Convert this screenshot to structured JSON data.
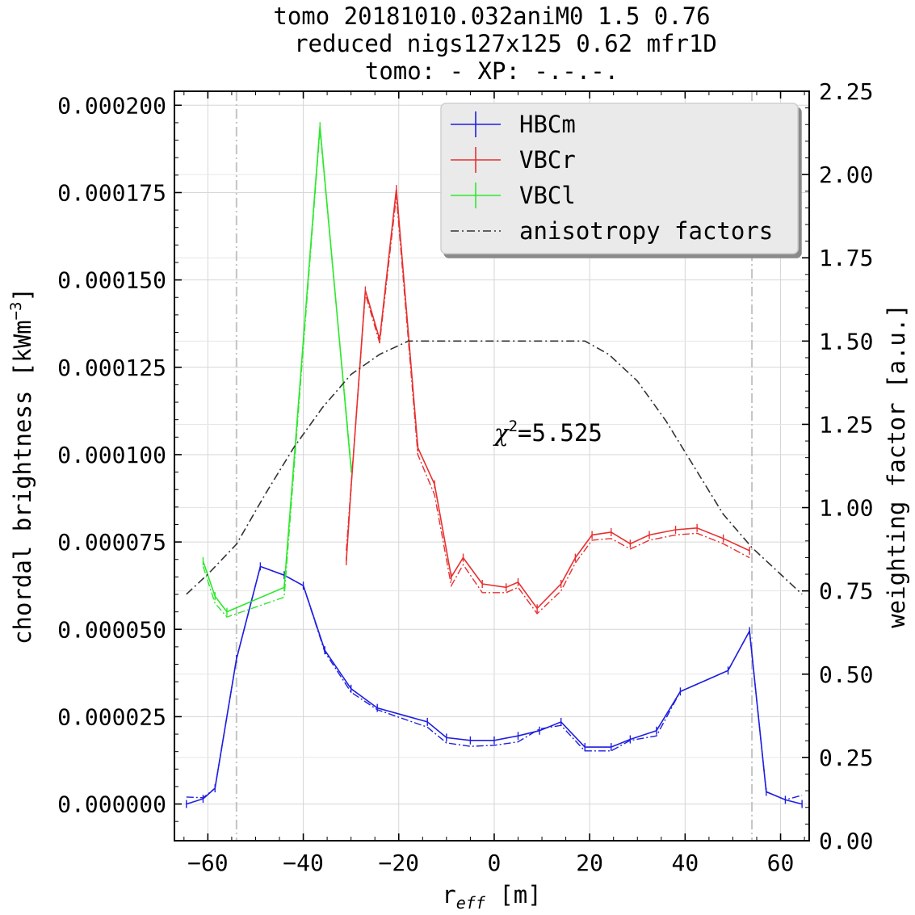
{
  "chart_data": {
    "type": "line",
    "title_lines": [
      "tomo 20181010.032aniM0  1.5 0.76",
      "reduced nigs127x125 0.62 mfr1D",
      "tomo: -   XP: -.-.-."
    ],
    "xlabel_base": "r",
    "xlabel_sub": "eff",
    "xlabel_unit": " [m]",
    "ylabel_base": "chordal brightness [kWm",
    "ylabel_sup": "−3",
    "ylabel_end": "]",
    "y2label": "weighting factor [a.u.]",
    "xlim": [
      -67,
      66
    ],
    "ylim": [
      -1.05e-05,
      0.000204
    ],
    "y2lim": [
      0.0,
      2.25
    ],
    "xticks": [
      -60,
      -40,
      -20,
      0,
      20,
      40,
      60
    ],
    "xtick_labels": [
      "−60",
      "−40",
      "−20",
      "0",
      "20",
      "40",
      "60"
    ],
    "yticks": [
      0.0,
      2.5e-05,
      5e-05,
      7.5e-05,
      0.0001,
      0.000125,
      0.00015,
      0.000175,
      0.0002
    ],
    "ytick_labels": [
      "0.000000",
      "0.000025",
      "0.000050",
      "0.000075",
      "0.000100",
      "0.000125",
      "0.000150",
      "0.000175",
      "0.000200"
    ],
    "y2ticks": [
      0.0,
      0.25,
      0.5,
      0.75,
      1.0,
      1.25,
      1.5,
      1.75,
      2.0,
      2.25
    ],
    "y2tick_labels": [
      "0.00",
      "0.25",
      "0.50",
      "0.75",
      "1.00",
      "1.25",
      "1.50",
      "1.75",
      "2.00",
      "2.25"
    ],
    "grid": true,
    "legend_position": "top-right",
    "vlines": [
      -54,
      54
    ],
    "annotation": {
      "prefix": "χ",
      "sup": "2",
      "text": "=5.525",
      "x": 0,
      "y": 0.000104
    },
    "series": [
      {
        "name": "HBCm",
        "color": "#1f1fe0",
        "axis": "left",
        "x": [
          -64.5,
          -61,
          -58.5,
          -54,
          -49,
          -44,
          -40,
          -35.5,
          -30,
          -24.5,
          -14,
          -10,
          -5,
          0,
          5,
          9.5,
          14,
          19,
          24.5,
          28.5,
          34,
          39,
          49,
          53.5,
          57,
          61,
          64.5
        ],
        "y": [
          0.0,
          1.5e-06,
          4.5e-06,
          4.15e-05,
          6.8e-05,
          6.55e-05,
          6.25e-05,
          4.4e-05,
          3.3e-05,
          2.75e-05,
          2.35e-05,
          1.9e-05,
          1.82e-05,
          1.82e-05,
          1.95e-05,
          2.1e-05,
          2.35e-05,
          1.63e-05,
          1.63e-05,
          1.85e-05,
          2.1e-05,
          3.22e-05,
          3.82e-05,
          4.95e-05,
          3.5e-06,
          1.2e-06,
          0.0
        ],
        "fit": [
          2e-06,
          1.8e-06,
          4.5e-06,
          4.15e-05,
          6.8e-05,
          6.55e-05,
          6.25e-05,
          4.35e-05,
          3.2e-05,
          2.7e-05,
          2.2e-05,
          1.75e-05,
          1.65e-05,
          1.68e-05,
          1.78e-05,
          2.15e-05,
          2.25e-05,
          1.52e-05,
          1.52e-05,
          1.82e-05,
          1.95e-05,
          3.22e-05,
          3.82e-05,
          4.95e-05,
          3.5e-06,
          1.2e-06,
          2.5e-06
        ]
      },
      {
        "name": "VBCr",
        "color": "#e83030",
        "axis": "left",
        "x": [
          -31,
          -30,
          -27,
          -24,
          -20.5,
          -16,
          -12.5,
          -9,
          -6.5,
          -2.5,
          2.5,
          5,
          9,
          14,
          17,
          20.5,
          24.5,
          28.5,
          32.5,
          38,
          42.5,
          48,
          53.5
        ],
        "y": [
          6.95e-05,
          9.05e-05,
          0.000147,
          0.000133,
          0.000176,
          0.000102,
          9.15e-05,
          6.5e-05,
          7.05e-05,
          6.3e-05,
          6.2e-05,
          6.35e-05,
          5.6e-05,
          6.3e-05,
          7.05e-05,
          7.7e-05,
          7.78e-05,
          7.45e-05,
          7.7e-05,
          7.85e-05,
          7.9e-05,
          7.6e-05,
          7.25e-05
        ],
        "fit": [
          7.25e-05,
          9.1e-05,
          0.000146,
          0.000132,
          0.000174,
          0.0001,
          8.85e-05,
          6.25e-05,
          6.85e-05,
          6.05e-05,
          6.05e-05,
          6.2e-05,
          5.45e-05,
          6.1e-05,
          6.9e-05,
          7.55e-05,
          7.6e-05,
          7.3e-05,
          7.55e-05,
          7.7e-05,
          7.75e-05,
          7.45e-05,
          7.05e-05
        ]
      },
      {
        "name": "VBCl",
        "color": "#2ee82e",
        "axis": "left",
        "x": [
          -61,
          -58.5,
          -56,
          -44,
          -36.5,
          -30
        ],
        "y": [
          6.95e-05,
          5.95e-05,
          5.5e-05,
          6.2e-05,
          0.000194,
          9.6e-05
        ],
        "fit": [
          6.8e-05,
          5.75e-05,
          5.35e-05,
          5.92e-05,
          0.000193,
          9.7e-05
        ]
      },
      {
        "name": "anisotropy factors",
        "color": "#333333",
        "axis": "right",
        "style": "dashdot",
        "x": [
          -64.5,
          -60,
          -54,
          -48,
          -42,
          -36,
          -30,
          -24,
          -18,
          -12,
          0,
          12,
          19,
          24,
          30,
          36,
          42,
          48,
          54,
          60,
          64.5
        ],
        "y": [
          0.74,
          0.8,
          0.89,
          1.04,
          1.18,
          1.3,
          1.4,
          1.46,
          1.5,
          1.5,
          1.5,
          1.5,
          1.5,
          1.46,
          1.38,
          1.26,
          1.12,
          0.98,
          0.88,
          0.8,
          0.74
        ]
      }
    ]
  }
}
